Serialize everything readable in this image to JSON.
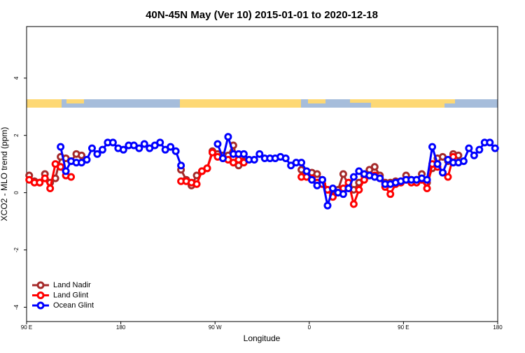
{
  "chart_data": {
    "type": "line",
    "title": "40N-45N May (Ver 10)   2015-01-01 to 2020-12-18",
    "x_label": "Longitude",
    "y_label": "XCO2 - MLO trend (ppm)",
    "x": [
      92.5,
      97.5,
      102.5,
      107.5,
      112.5,
      117.5,
      122.5,
      127.5,
      132.5,
      137.5,
      142.5,
      147.5,
      152.5,
      157.5,
      162.5,
      167.5,
      172.5,
      177.5,
      182.5,
      187.5,
      192.5,
      197.5,
      202.5,
      207.5,
      212.5,
      217.5,
      222.5,
      227.5,
      232.5,
      237.5,
      242.5,
      247.5,
      252.5,
      257.5,
      262.5,
      267.5,
      272.5,
      277.5,
      282.5,
      287.5,
      292.5,
      297.5,
      302.5,
      307.5,
      312.5,
      317.5,
      322.5,
      327.5,
      332.5,
      337.5,
      342.5,
      347.5,
      352.5,
      357.5,
      362.5,
      367.5,
      372.5,
      377.5,
      382.5,
      387.5,
      392.5,
      397.5,
      402.5,
      407.5,
      412.5,
      417.5,
      422.5,
      427.5,
      432.5,
      437.5,
      442.5,
      447.5,
      452.5,
      457.5,
      462.5,
      467.5,
      472.5,
      477.5,
      482.5,
      487.5,
      492.5,
      497.5,
      502.5,
      507.5,
      512.5,
      517.5,
      522.5,
      527.5,
      532.5,
      537.5
    ],
    "xlim": [
      90,
      540
    ],
    "xticks": [
      {
        "value": 90,
        "label": "90 E"
      },
      180,
      {
        "value": 270,
        "label": "90 W"
      },
      {
        "value": 360,
        "label": "0"
      },
      {
        "value": 450,
        "label": "90 E"
      },
      {
        "value": 540,
        "label": "180"
      }
    ],
    "ylim": [
      -4.5,
      5.8
    ],
    "yticks": [
      -4,
      -2,
      0,
      2,
      4
    ],
    "legend": "bottom-left",
    "series": [
      {
        "name": "Land Nadir",
        "color": "#a52a2a",
        "values": [
          0.6,
          0.4,
          0.35,
          0.65,
          0.35,
          0.5,
          1.25,
          1.2,
          1.1,
          1.35,
          1.3,
          null,
          null,
          null,
          null,
          null,
          null,
          null,
          null,
          null,
          null,
          null,
          null,
          null,
          null,
          null,
          null,
          null,
          null,
          0.8,
          0.45,
          0.25,
          0.6,
          0.75,
          0.85,
          1.45,
          1.35,
          1.3,
          1.3,
          1.65,
          0.95,
          1.1,
          null,
          null,
          null,
          null,
          null,
          null,
          null,
          null,
          null,
          null,
          0.8,
          0.7,
          0.7,
          0.65,
          0.45,
          0.1,
          -0.1,
          0.1,
          0.65,
          0.25,
          0.1,
          0.35,
          0.6,
          0.8,
          0.9,
          0.6,
          0.35,
          0.35,
          0.4,
          0.4,
          0.6,
          0.45,
          0.45,
          0.65,
          0.35,
          0.85,
          1.2,
          1.25,
          1.1,
          1.35,
          1.3,
          null,
          null,
          null,
          null,
          null,
          null,
          null
        ]
      },
      {
        "name": "Land Glint",
        "color": "#ff0000",
        "values": [
          0.45,
          0.35,
          0.35,
          0.5,
          0.15,
          1.0,
          0.9,
          0.6,
          0.55,
          null,
          null,
          null,
          null,
          null,
          null,
          null,
          null,
          null,
          null,
          null,
          null,
          null,
          null,
          null,
          null,
          null,
          null,
          null,
          null,
          0.4,
          0.4,
          0.35,
          0.3,
          0.75,
          0.85,
          1.4,
          1.25,
          1.2,
          1.15,
          1.05,
          1.15,
          1.05,
          null,
          null,
          null,
          null,
          null,
          null,
          null,
          null,
          null,
          null,
          0.55,
          0.55,
          0.5,
          0.35,
          0.3,
          0.1,
          -0.15,
          0.0,
          0.15,
          0.35,
          -0.4,
          0.1,
          0.45,
          0.6,
          0.6,
          0.5,
          0.2,
          -0.05,
          0.3,
          0.35,
          0.45,
          0.35,
          0.35,
          0.45,
          0.15,
          1.0,
          0.9,
          0.7,
          0.55,
          1.25,
          null,
          null,
          null,
          null,
          null,
          null,
          null,
          null
        ]
      },
      {
        "name": "Ocean Glint",
        "color": "#0000ff",
        "values": [
          null,
          null,
          null,
          null,
          null,
          null,
          1.6,
          0.75,
          1.1,
          1.05,
          1.05,
          1.15,
          1.55,
          1.35,
          1.5,
          1.75,
          1.75,
          1.55,
          1.5,
          1.65,
          1.65,
          1.55,
          1.7,
          1.55,
          1.65,
          1.75,
          1.5,
          1.6,
          1.45,
          0.95,
          null,
          null,
          null,
          null,
          null,
          null,
          1.7,
          1.2,
          1.95,
          1.35,
          1.35,
          1.35,
          1.15,
          1.15,
          1.35,
          1.2,
          1.2,
          1.2,
          1.25,
          1.2,
          0.95,
          1.05,
          1.05,
          0.75,
          0.45,
          0.25,
          0.45,
          -0.45,
          0.15,
          0.0,
          -0.05,
          0.15,
          0.55,
          0.75,
          0.65,
          0.6,
          0.55,
          0.5,
          0.3,
          0.3,
          0.35,
          0.4,
          0.45,
          0.45,
          0.45,
          0.5,
          0.45,
          1.6,
          1.0,
          0.7,
          1.15,
          1.05,
          1.05,
          1.1,
          1.55,
          1.3,
          1.5,
          1.75,
          1.75,
          1.55
        ]
      }
    ]
  }
}
